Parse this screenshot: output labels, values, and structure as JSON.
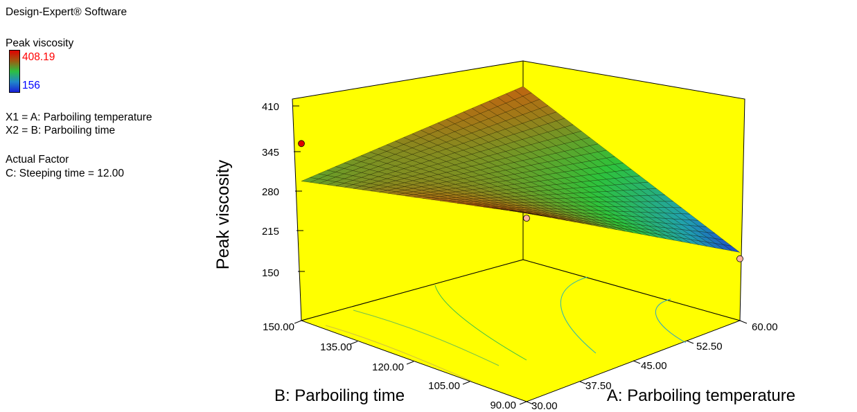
{
  "sidebar": {
    "software": "Design-Expert® Software",
    "response_name": "Peak viscosity",
    "color_max": "408.19",
    "color_min": "156",
    "x1": "X1 = A: Parboiling temperature",
    "x2": "X2 = B: Parboiling time",
    "actual_factor_title": "Actual Factor",
    "actual_factor": "C: Steeping time = 12.00"
  },
  "colors": {
    "background": "#ffff00",
    "high": "#dd0000",
    "low": "#0000dd",
    "gradient": [
      "#1a2bd0",
      "#20a0b0",
      "#2ec33a",
      "#a07a18",
      "#e84a08"
    ]
  },
  "chart_data": {
    "type": "surface",
    "title": "",
    "zlabel": "Peak viscosity",
    "xlabel": "A: Parboiling temperature",
    "ylabel": "B: Parboiling time",
    "z_ticks": [
      "410",
      "345",
      "280",
      "215",
      "150"
    ],
    "x_ticks": [
      "30.00",
      "37.50",
      "45.00",
      "52.50",
      "60.00"
    ],
    "y_ticks": [
      "90.00",
      "105.00",
      "120.00",
      "135.00",
      "150.00"
    ],
    "zlim": [
      150,
      410
    ],
    "xlim": [
      30,
      60
    ],
    "ylim": [
      90,
      150
    ],
    "corner_values": [
      {
        "A": 30,
        "B": 90,
        "z": 370
      },
      {
        "A": 60,
        "B": 90,
        "z": 181
      },
      {
        "A": 30,
        "B": 150,
        "z": 293
      },
      {
        "A": 60,
        "B": 150,
        "z": 346
      }
    ],
    "design_points": [
      {
        "A": 30,
        "B": 90,
        "z": 362
      },
      {
        "A": 30,
        "B": 150,
        "z": 352
      },
      {
        "A": 60,
        "B": 90,
        "z": 171
      }
    ]
  }
}
